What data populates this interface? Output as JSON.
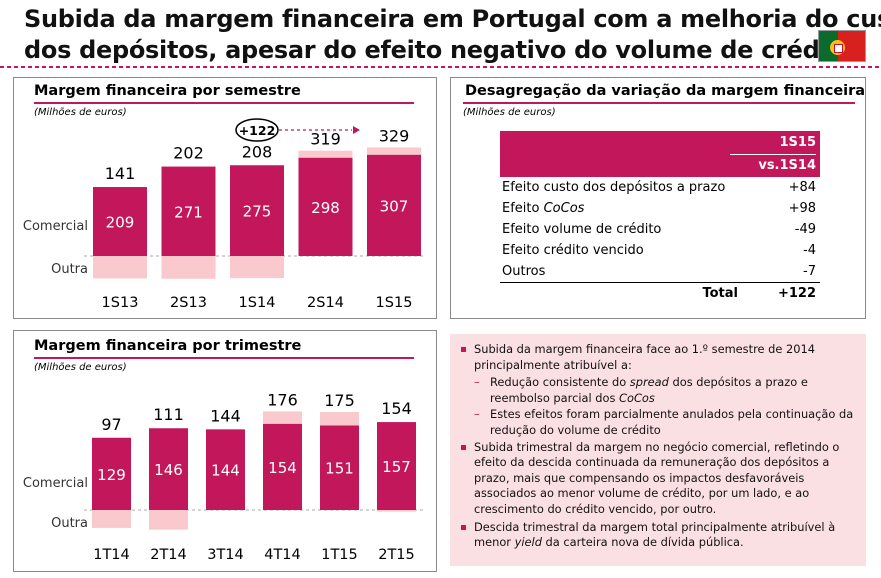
{
  "title": {
    "line1": "Subida da margem financeira em Portugal com a melhoria do custo",
    "line2": "dos depósitos, apesar do efeito negativo do volume de crédito"
  },
  "colors": {
    "accent": "#c2185b",
    "light": "#f9c9ce",
    "panel_bg": "#fbe0e3"
  },
  "chart_data": [
    {
      "type": "bar",
      "title": "Margem financeira por semestre",
      "subtitle": "(Milhões de euros)",
      "categories": [
        "1S13",
        "2S13",
        "1S14",
        "2S14",
        "1S15"
      ],
      "series": [
        {
          "name": "Comercial",
          "values": [
            209,
            271,
            275,
            298,
            307
          ]
        },
        {
          "name": "Outra",
          "values": [
            -68,
            -69,
            -67,
            21,
            22
          ]
        }
      ],
      "totals": [
        141,
        202,
        208,
        319,
        329
      ],
      "annotation": "+122",
      "row_labels": [
        "Comercial",
        "Outra"
      ]
    },
    {
      "type": "bar",
      "title": "Margem financeira por trimestre",
      "subtitle": "(Milhões de euros)",
      "categories": [
        "1T14",
        "2T14",
        "3T14",
        "4T14",
        "1T15",
        "2T15"
      ],
      "series": [
        {
          "name": "Comercial",
          "values": [
            129,
            146,
            144,
            154,
            151,
            157
          ]
        },
        {
          "name": "Outra",
          "values": [
            -32,
            -35,
            0,
            22,
            24,
            -3
          ]
        }
      ],
      "totals": [
        97,
        111,
        144,
        176,
        175,
        154
      ],
      "row_labels": [
        "Comercial",
        "Outra"
      ]
    }
  ],
  "breakdown": {
    "title": "Desagregação da variação da margem financeira",
    "subtitle": "(Milhões de euros)",
    "header_line1": "1S15",
    "header_line2": "vs.1S14",
    "rows": [
      {
        "label_plain": "Efeito custo dos depósitos a prazo",
        "label_italic": "",
        "value": "+84"
      },
      {
        "label_plain": "Efeito ",
        "label_italic": "CoCos",
        "value": "+98"
      },
      {
        "label_plain": "Efeito volume de crédito",
        "label_italic": "",
        "value": "-49"
      },
      {
        "label_plain": "Efeito crédito vencido",
        "label_italic": "",
        "value": "-4"
      },
      {
        "label_plain": "Outros",
        "label_italic": "",
        "value": "-7"
      }
    ],
    "total_label": "Total",
    "total_value": "+122"
  },
  "bullets": {
    "b1": "Subida da margem financeira face ao 1.º semestre de 2014 principalmente atribuível a:",
    "b1a_1": "Redução consistente do ",
    "b1a_i1": "spread",
    "b1a_2": " dos depósitos a prazo e reembolso parcial dos ",
    "b1a_i2": "CoCos",
    "b1b": "Estes efeitos foram parcialmente anulados pela continuação da redução do volume de crédito",
    "b2": "Subida trimestral da margem no negócio comercial, refletindo o efeito da descida continuada da remuneração dos depósitos a prazo, mais que compensando os impactos desfavoráveis associados ao menor volume de crédito, por um lado, e ao crescimento do crédito vencido, por outro.",
    "b3_1": "Descida trimestral da margem total principalmente atribuível à menor ",
    "b3_i": "yield",
    "b3_2": " da carteira nova de dívida pública."
  }
}
